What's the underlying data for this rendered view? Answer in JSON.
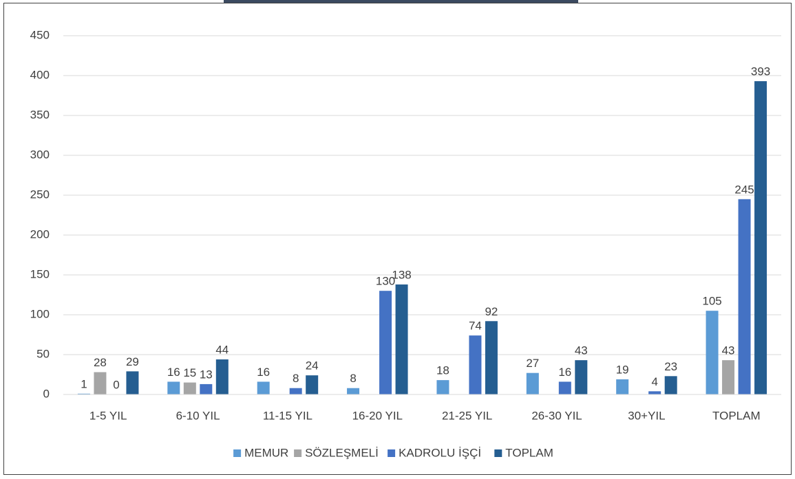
{
  "chart_data": {
    "type": "bar",
    "categories": [
      "1-5 YIL",
      "6-10 YIL",
      "11-15 YIL",
      "16-20 YIL",
      "21-25 YIL",
      "26-30 YIL",
      "30+YIL",
      "TOPLAM"
    ],
    "series": [
      {
        "name": "MEMUR",
        "color": "#5b9bd5",
        "values": [
          1,
          16,
          16,
          8,
          18,
          27,
          19,
          105
        ]
      },
      {
        "name": "SÖZLEŞMELİ",
        "color": "#a5a5a5",
        "values": [
          28,
          15,
          null,
          null,
          null,
          null,
          null,
          43
        ]
      },
      {
        "name": "KADROLU İŞÇİ",
        "color": "#4472c4",
        "values": [
          0,
          13,
          8,
          130,
          74,
          16,
          4,
          245
        ]
      },
      {
        "name": "TOPLAM",
        "color": "#255e91",
        "values": [
          29,
          44,
          24,
          138,
          92,
          43,
          23,
          393
        ]
      }
    ],
    "ylim": [
      0,
      450
    ],
    "yticks": [
      0,
      50,
      100,
      150,
      200,
      250,
      300,
      350,
      400,
      450
    ],
    "grid": true,
    "legend": "bottom"
  }
}
